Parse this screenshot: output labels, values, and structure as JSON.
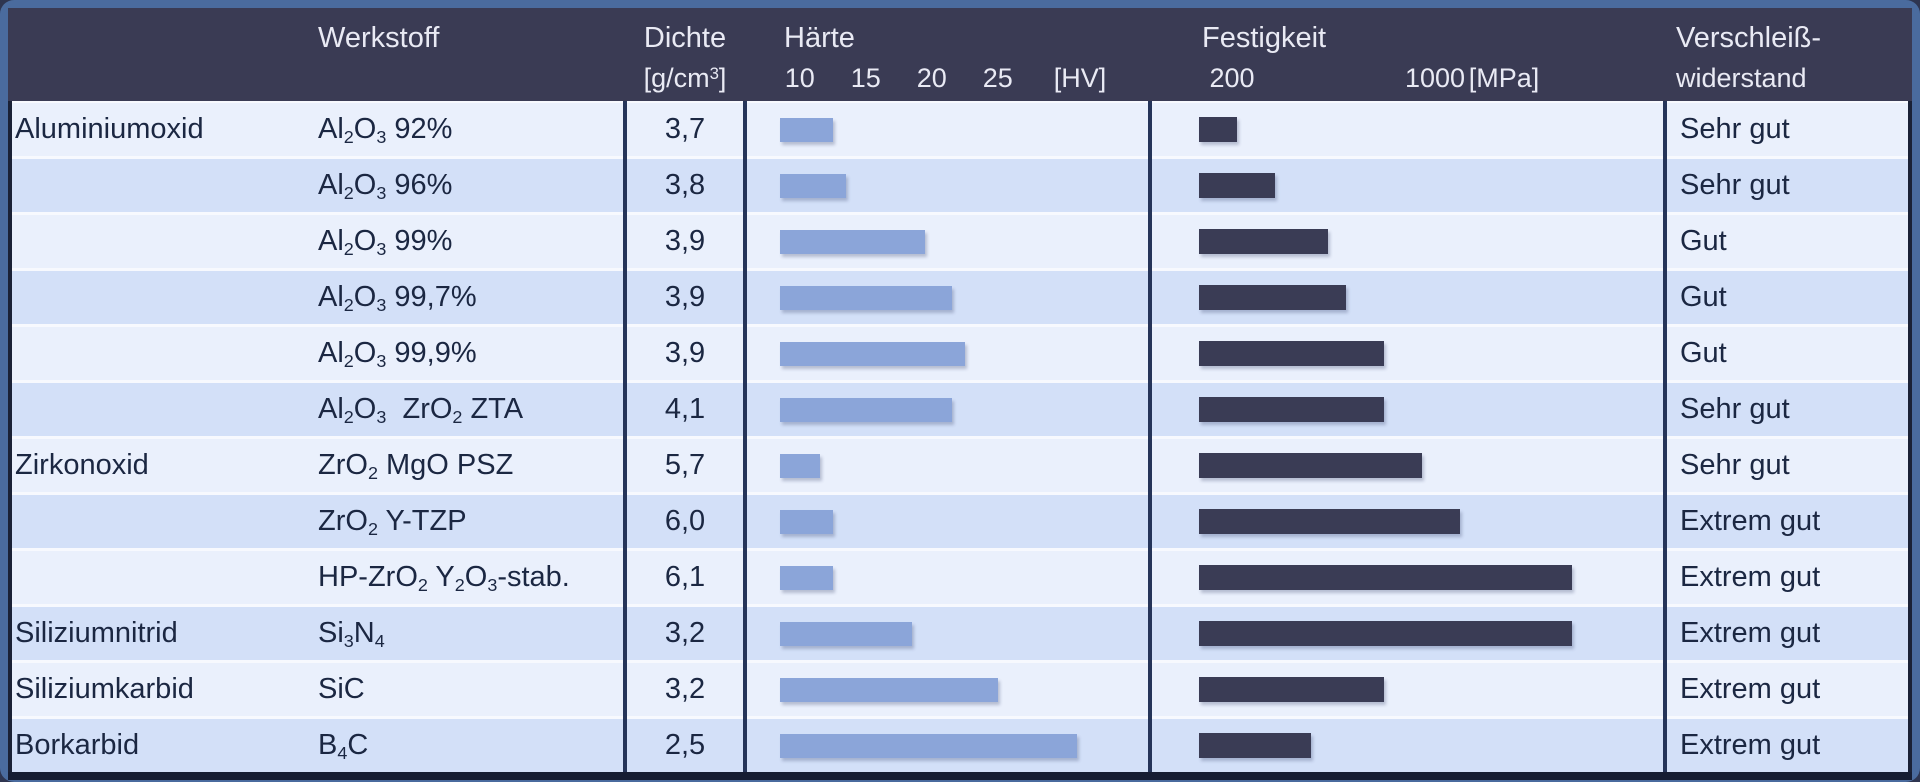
{
  "colors": {
    "frame_blue": "#4a6b9e",
    "header_navy": "#3a3b54",
    "hardness_bar_blue": "#8ba5d9",
    "strength_bar_navy": "#3a3c55",
    "row_light": "#eaf0fc",
    "row_tinted": "#d3e0f8",
    "grid_line_navy": "#253459",
    "body_text_navy": "#1b2742",
    "header_text": "#e9eaf4"
  },
  "header": {
    "werkstoff": "Werkstoff",
    "dichte": "Dichte",
    "dichte_unit_open": "[g/cm",
    "dichte_unit_sup": "3",
    "dichte_unit_close": "]",
    "haerte": "Härte",
    "haerte_unit": "[HV]",
    "festigkeit": "Festigkeit",
    "festigkeit_unit": "[MPa]",
    "verschleiss_line1": "Verschleiß-",
    "verschleiss_line2": "widerstand"
  },
  "rows": [
    {
      "group": "Aluminiumoxid",
      "formula": [
        {
          "t": "Al"
        },
        {
          "t": "2",
          "sub": true
        },
        {
          "t": "O"
        },
        {
          "t": "3",
          "sub": true
        },
        {
          "t": " 92%"
        }
      ],
      "dichte": "3,7",
      "haerte_HV": 12.5,
      "festigkeit_MPa": 220,
      "verschleiss": "Sehr gut"
    },
    {
      "group": "",
      "formula": [
        {
          "t": "Al"
        },
        {
          "t": "2",
          "sub": true
        },
        {
          "t": "O"
        },
        {
          "t": "3",
          "sub": true
        },
        {
          "t": " 96%"
        }
      ],
      "dichte": "3,8",
      "haerte_HV": 13.5,
      "festigkeit_MPa": 370,
      "verschleiss": "Sehr gut"
    },
    {
      "group": "",
      "formula": [
        {
          "t": "Al"
        },
        {
          "t": "2",
          "sub": true
        },
        {
          "t": "O"
        },
        {
          "t": "3",
          "sub": true
        },
        {
          "t": " 99%"
        }
      ],
      "dichte": "3,9",
      "haerte_HV": 19.5,
      "festigkeit_MPa": 580,
      "verschleiss": "Gut"
    },
    {
      "group": "",
      "formula": [
        {
          "t": "Al"
        },
        {
          "t": "2",
          "sub": true
        },
        {
          "t": "O"
        },
        {
          "t": "3",
          "sub": true
        },
        {
          "t": " 99,7%"
        }
      ],
      "dichte": "3,9",
      "haerte_HV": 21.5,
      "festigkeit_MPa": 650,
      "verschleiss": "Gut"
    },
    {
      "group": "",
      "formula": [
        {
          "t": "Al"
        },
        {
          "t": "2",
          "sub": true
        },
        {
          "t": "O"
        },
        {
          "t": "3",
          "sub": true
        },
        {
          "t": " 99,9%"
        }
      ],
      "dichte": "3,9",
      "haerte_HV": 22.5,
      "festigkeit_MPa": 800,
      "verschleiss": "Gut"
    },
    {
      "group": "",
      "formula": [
        {
          "t": "Al"
        },
        {
          "t": "2",
          "sub": true
        },
        {
          "t": "O"
        },
        {
          "t": "3",
          "sub": true
        },
        {
          "t": "  ZrO"
        },
        {
          "t": "2",
          "sub": true
        },
        {
          "t": " ZTA"
        }
      ],
      "dichte": "4,1",
      "haerte_HV": 21.5,
      "festigkeit_MPa": 800,
      "verschleiss": "Sehr gut"
    },
    {
      "group": "Zirkonoxid",
      "formula": [
        {
          "t": "ZrO"
        },
        {
          "t": "2",
          "sub": true
        },
        {
          "t": " MgO PSZ"
        }
      ],
      "dichte": "5,7",
      "haerte_HV": 11.5,
      "festigkeit_MPa": 950,
      "verschleiss": "Sehr gut"
    },
    {
      "group": "",
      "formula": [
        {
          "t": "ZrO"
        },
        {
          "t": "2",
          "sub": true
        },
        {
          "t": " Y-TZP"
        }
      ],
      "dichte": "6,0",
      "haerte_HV": 12.5,
      "festigkeit_MPa": 1100,
      "verschleiss": "Extrem gut"
    },
    {
      "group": "",
      "formula": [
        {
          "t": "HP-ZrO"
        },
        {
          "t": "2",
          "sub": true
        },
        {
          "t": " Y"
        },
        {
          "t": "2",
          "sub": true
        },
        {
          "t": "O"
        },
        {
          "t": "3",
          "sub": true
        },
        {
          "t": "-stab."
        }
      ],
      "dichte": "6,1",
      "haerte_HV": 12.5,
      "festigkeit_MPa": 1540,
      "verschleiss": "Extrem gut"
    },
    {
      "group": "Siliziumnitrid",
      "formula": [
        {
          "t": "Si"
        },
        {
          "t": "3",
          "sub": true
        },
        {
          "t": "N"
        },
        {
          "t": "4",
          "sub": true
        }
      ],
      "dichte": "3,2",
      "haerte_HV": 18.5,
      "festigkeit_MPa": 1540,
      "verschleiss": "Extrem gut"
    },
    {
      "group": "Siliziumkarbid",
      "formula": [
        {
          "t": "SiC"
        }
      ],
      "dichte": "3,2",
      "haerte_HV": 25,
      "festigkeit_MPa": 800,
      "verschleiss": "Extrem gut"
    },
    {
      "group": "Borkarbid",
      "formula": [
        {
          "t": "B"
        },
        {
          "t": "4",
          "sub": true
        },
        {
          "t": "C"
        }
      ],
      "dichte": "2,5",
      "haerte_HV": 31,
      "festigkeit_MPa": 510,
      "verschleiss": "Extrem gut"
    }
  ],
  "chart_data": {
    "type": "bar",
    "orientation": "horizontal",
    "categories": [
      "Al2O3 92%",
      "Al2O3 96%",
      "Al2O3 99%",
      "Al2O3 99,7%",
      "Al2O3 99,9%",
      "Al2O3 ZrO2 ZTA",
      "ZrO2 MgO PSZ",
      "ZrO2 Y-TZP",
      "HP-ZrO2 Y2O3-stab.",
      "Si3N4",
      "SiC",
      "B4C"
    ],
    "groups": [
      "Aluminiumoxid",
      "Aluminiumoxid",
      "Aluminiumoxid",
      "Aluminiumoxid",
      "Aluminiumoxid",
      "Aluminiumoxid",
      "Zirkonoxid",
      "Zirkonoxid",
      "Zirkonoxid",
      "Siliziumnitrid",
      "Siliziumkarbid",
      "Borkarbid"
    ],
    "series": [
      {
        "name": "Dichte [g/cm3]",
        "values": [
          3.7,
          3.8,
          3.9,
          3.9,
          3.9,
          4.1,
          5.7,
          6.0,
          6.1,
          3.2,
          3.2,
          2.5
        ]
      },
      {
        "name": "Härte [HV]",
        "values": [
          12.5,
          13.5,
          19.5,
          21.5,
          22.5,
          21.5,
          11.5,
          12.5,
          12.5,
          18.5,
          25,
          31
        ]
      },
      {
        "name": "Festigkeit [MPa]",
        "values": [
          220,
          370,
          580,
          650,
          800,
          800,
          950,
          1100,
          1540,
          1540,
          800,
          510
        ]
      },
      {
        "name": "Verschleißwiderstand",
        "values": [
          "Sehr gut",
          "Sehr gut",
          "Gut",
          "Gut",
          "Gut",
          "Sehr gut",
          "Sehr gut",
          "Extrem gut",
          "Extrem gut",
          "Extrem gut",
          "Extrem gut",
          "Extrem gut"
        ]
      }
    ],
    "haerte_axis": {
      "ticks": [
        10,
        15,
        20,
        25
      ],
      "unit": "[HV]",
      "min": 8.5,
      "max": 36
    },
    "festigkeit_axis": {
      "ticks": [
        200,
        1000
      ],
      "unit": "[MPa]",
      "min": 70,
      "max": 1890
    },
    "grid": false,
    "legend": "none"
  }
}
